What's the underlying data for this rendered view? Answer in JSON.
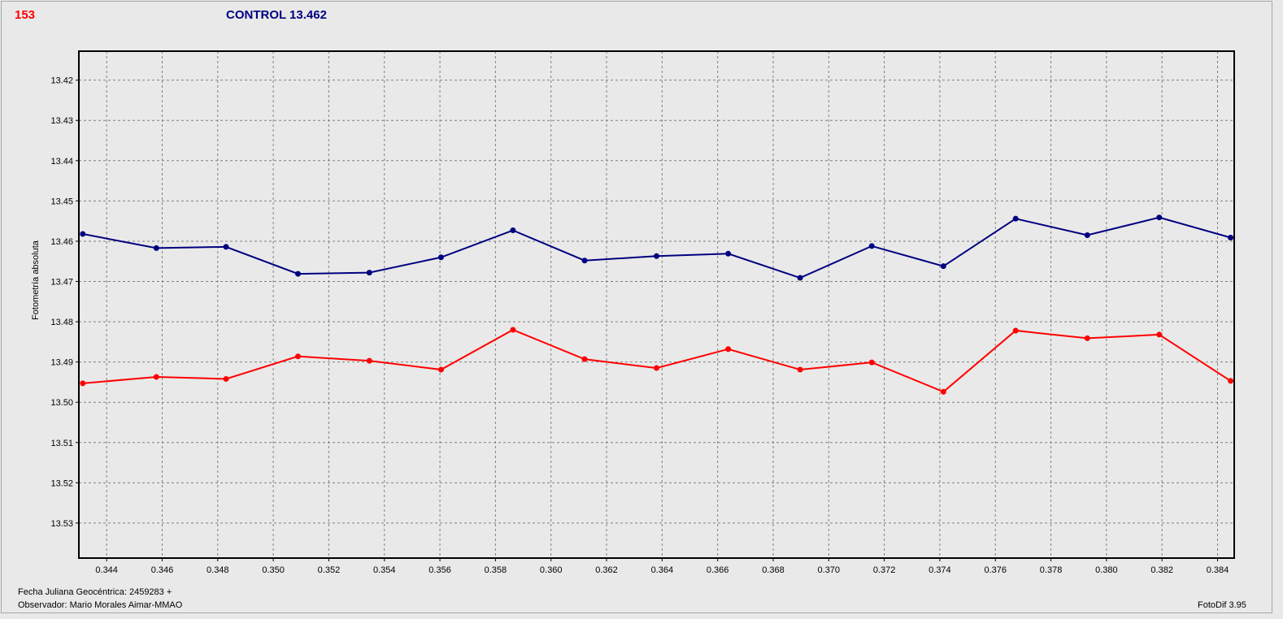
{
  "header": {
    "id_label": "153",
    "control_label": "CONTROL 13.462"
  },
  "footer": {
    "julian_date": "Fecha Juliana Geocéntrica: 2459283 +",
    "observer": "Observador: Mario Morales Aimar-MMAO",
    "software": "FotoDif 3.95"
  },
  "colors": {
    "series_control": "#000080",
    "series_target": "#ff0000",
    "grid": "#808080",
    "plot_bg": "#e9e9e9"
  },
  "chart_data": {
    "type": "line",
    "ylabel": "Fotometría absoluta",
    "xlabel": "",
    "xlim": [
      0.343,
      0.3846
    ],
    "ylim": [
      13.5387,
      13.4128
    ],
    "y_inverted": true,
    "grid": true,
    "x_ticks": [
      "0.344",
      "0.346",
      "0.348",
      "0.350",
      "0.352",
      "0.354",
      "0.356",
      "0.358",
      "0.360",
      "0.362",
      "0.364",
      "0.366",
      "0.368",
      "0.370",
      "0.372",
      "0.374",
      "0.376",
      "0.378",
      "0.380",
      "0.382",
      "0.384"
    ],
    "y_ticks": [
      "13.42",
      "13.43",
      "13.44",
      "13.45",
      "13.46",
      "13.47",
      "13.48",
      "13.49",
      "13.50",
      "13.51",
      "13.52",
      "13.53"
    ],
    "x": [
      0.34314,
      0.34579,
      0.3483,
      0.35089,
      0.35346,
      0.35604,
      0.35863,
      0.36121,
      0.3638,
      0.36638,
      0.36897,
      0.37155,
      0.37413,
      0.37673,
      0.37931,
      0.3819,
      0.38447
    ],
    "series": [
      {
        "color": "#000080",
        "values": [
          13.4582,
          13.4617,
          13.4614,
          13.4681,
          13.4678,
          13.464,
          13.4573,
          13.4648,
          13.4637,
          13.4631,
          13.4691,
          13.4612,
          13.4662,
          13.4544,
          13.4585,
          13.4541,
          13.4591
        ]
      },
      {
        "color": "#ff0000",
        "values": [
          13.4953,
          13.4937,
          13.4942,
          13.4886,
          13.4897,
          13.4919,
          13.482,
          13.4893,
          13.4915,
          13.4868,
          13.4919,
          13.4901,
          13.4974,
          13.4822,
          13.4841,
          13.4832,
          13.4947
        ]
      }
    ]
  }
}
